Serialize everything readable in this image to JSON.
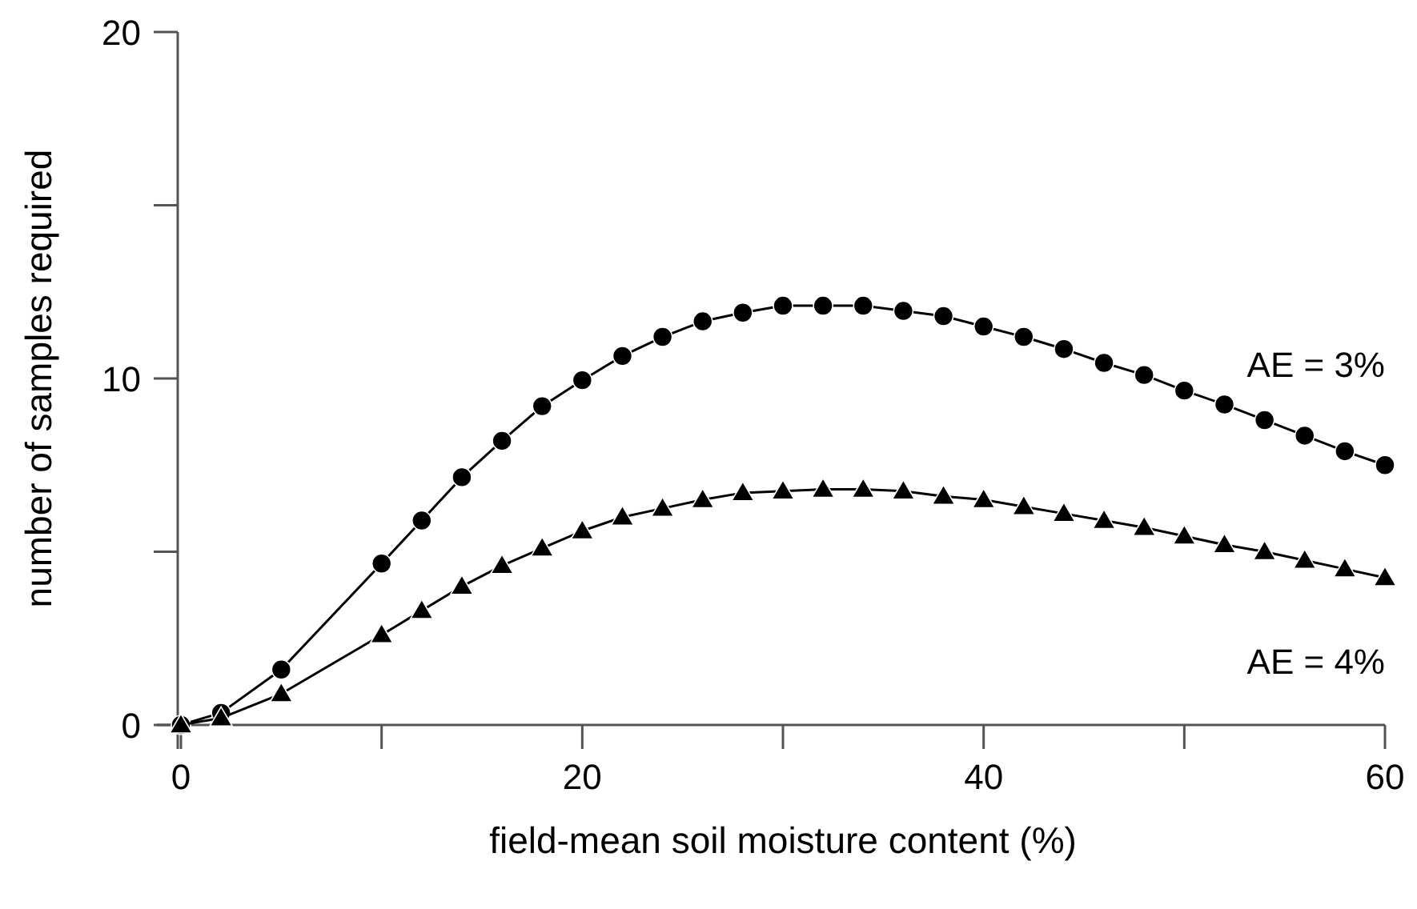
{
  "chart_data": {
    "type": "line",
    "xlabel": "field-mean soil moisture content (%)",
    "ylabel": "number of samples required",
    "x": [
      0,
      2,
      5,
      10,
      12,
      14,
      16,
      18,
      20,
      22,
      24,
      26,
      28,
      30,
      32,
      34,
      36,
      38,
      40,
      42,
      44,
      46,
      48,
      50,
      52,
      54,
      56,
      58,
      60
    ],
    "series": [
      {
        "name": "AE = 3%",
        "color": "#000000",
        "marker": "circle",
        "values": [
          0,
          0.35,
          1.6,
          4.66,
          5.9,
          7.15,
          8.2,
          9.2,
          9.95,
          10.65,
          11.2,
          11.65,
          11.9,
          12.1,
          12.1,
          12.1,
          11.95,
          11.8,
          11.5,
          11.2,
          10.85,
          10.45,
          10.1,
          9.65,
          9.25,
          8.8,
          8.35,
          7.9,
          7.5
        ]
      },
      {
        "name": "AE = 4%",
        "color": "#000000",
        "marker": "triangle",
        "values": [
          0,
          0.2,
          0.9,
          2.6,
          3.3,
          4.0,
          4.6,
          5.1,
          5.6,
          6.0,
          6.25,
          6.5,
          6.7,
          6.75,
          6.8,
          6.8,
          6.75,
          6.6,
          6.5,
          6.3,
          6.1,
          5.9,
          5.7,
          5.45,
          5.2,
          5.0,
          4.75,
          4.5,
          4.25
        ]
      }
    ],
    "xlim": [
      0,
      60
    ],
    "xticks": [
      0,
      {
        "value": 10,
        "label": null
      },
      20,
      {
        "value": 30,
        "label": null
      },
      40,
      {
        "value": 50,
        "label": null
      },
      60
    ],
    "ylim": [
      0,
      20
    ],
    "yticks": [
      0,
      {
        "value": 5,
        "label": null
      },
      10,
      {
        "value": 15,
        "label": null
      },
      20
    ],
    "line_style": "solid"
  }
}
